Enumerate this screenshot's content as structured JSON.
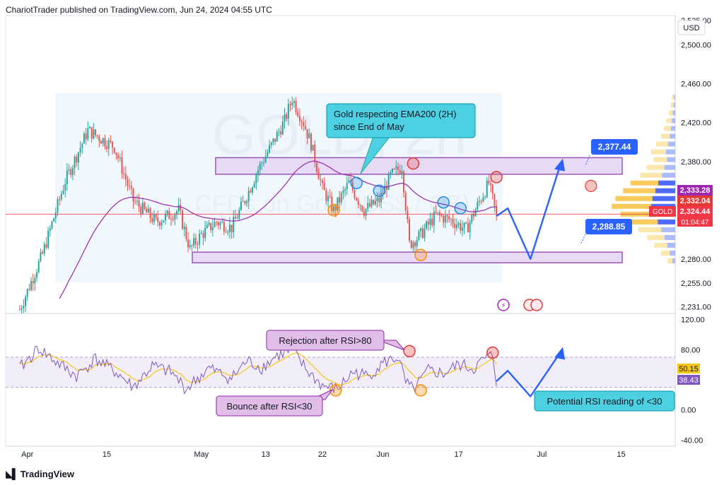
{
  "header": {
    "text": "ChariotTrader published on TradingView.com, Jun 24, 2024 04:55 UTC"
  },
  "footer": {
    "logo_text": "TradingView"
  },
  "currency_button": "USD",
  "watermark": {
    "symbol": "GOLD, 2h",
    "description": "CFDs on Gold (US$ / OZ)"
  },
  "colors": {
    "up": "#26a69a",
    "down": "#ef5350",
    "ema": "#9c27b0",
    "zone_fill": "#e6d7f3",
    "zone_stroke": "#8e44ad",
    "callout_cyan": "#4dd0e1",
    "arrow_blue": "#2962ff",
    "rsi_line": "#7e57c2",
    "rsi_ma": "#f5c518",
    "current_price_line": "#f23645"
  },
  "chart_data": [
    {
      "type": "candlestick",
      "symbol": "GOLD",
      "timeframe": "2h",
      "x_tick_labels": [
        "Apr",
        "15",
        "May",
        "13",
        "22",
        "Jun",
        "17",
        "Jul",
        "15"
      ],
      "y_tick_labels": [
        "2,525.00",
        "2,500.00",
        "2,460.00",
        "2,420.00",
        "2,380.00",
        "2,280.00",
        "2,255.00",
        "2,231.00"
      ],
      "ylim": [
        2224,
        2530
      ],
      "axis_price_labels": [
        {
          "value": "2,333.28",
          "color": "#9c27b0"
        },
        {
          "value": "2,332.04",
          "color": "#e53935"
        },
        {
          "value": "2,324.44",
          "color": "#f23645",
          "symbol": "GOLD",
          "countdown": "01:04:47"
        }
      ],
      "ema200": {
        "name": "EMA200"
      },
      "zones": [
        {
          "label": "resistance",
          "low": 2367,
          "high": 2384
        },
        {
          "label": "support",
          "low": 2276,
          "high": 2287
        }
      ],
      "annotations": [
        {
          "text": "Gold respecting EMA200 (2H) since End of May",
          "kind": "callout"
        },
        {
          "text": "2,377.44",
          "kind": "price-label"
        },
        {
          "text": "2,288.85",
          "kind": "price-label"
        }
      ],
      "price_path_anchors": [
        {
          "t": 0,
          "p": 2228
        },
        {
          "t": 6,
          "p": 2285
        },
        {
          "t": 12,
          "p": 2360
        },
        {
          "t": 18,
          "p": 2412
        },
        {
          "t": 25,
          "p": 2395
        },
        {
          "t": 30,
          "p": 2340
        },
        {
          "t": 36,
          "p": 2318
        },
        {
          "t": 42,
          "p": 2330
        },
        {
          "t": 45,
          "p": 2290
        },
        {
          "t": 48,
          "p": 2305
        },
        {
          "t": 52,
          "p": 2318
        },
        {
          "t": 56,
          "p": 2312
        },
        {
          "t": 60,
          "p": 2345
        },
        {
          "t": 63,
          "p": 2372
        },
        {
          "t": 67,
          "p": 2400
        },
        {
          "t": 70,
          "p": 2422
        },
        {
          "t": 72,
          "p": 2445
        },
        {
          "t": 75,
          "p": 2420
        },
        {
          "t": 77,
          "p": 2398
        },
        {
          "t": 80,
          "p": 2352
        },
        {
          "t": 83,
          "p": 2330
        },
        {
          "t": 87,
          "p": 2358
        },
        {
          "t": 91,
          "p": 2330
        },
        {
          "t": 95,
          "p": 2340
        },
        {
          "t": 98,
          "p": 2365
        },
        {
          "t": 101,
          "p": 2375
        },
        {
          "t": 103,
          "p": 2295
        },
        {
          "t": 106,
          "p": 2305
        },
        {
          "t": 110,
          "p": 2325
        },
        {
          "t": 114,
          "p": 2320
        },
        {
          "t": 118,
          "p": 2310
        },
        {
          "t": 121,
          "p": 2335
        },
        {
          "t": 124,
          "p": 2358
        },
        {
          "t": 126,
          "p": 2324
        }
      ],
      "projection": [
        {
          "t": 126,
          "p": 2324
        },
        {
          "t": 129,
          "p": 2332
        },
        {
          "t": 135,
          "p": 2280
        },
        {
          "t": 143,
          "p": 2378
        }
      ],
      "target_marker": {
        "t": 151,
        "p": 2355
      },
      "volume_profile": [
        {
          "p": 2446,
          "v": 0.05
        },
        {
          "p": 2438,
          "v": 0.07
        },
        {
          "p": 2430,
          "v": 0.1
        },
        {
          "p": 2422,
          "v": 0.14
        },
        {
          "p": 2414,
          "v": 0.18
        },
        {
          "p": 2406,
          "v": 0.22
        },
        {
          "p": 2398,
          "v": 0.3
        },
        {
          "p": 2390,
          "v": 0.38
        },
        {
          "p": 2382,
          "v": 0.34
        },
        {
          "p": 2374,
          "v": 0.45
        },
        {
          "p": 2366,
          "v": 0.55
        },
        {
          "p": 2358,
          "v": 0.7
        },
        {
          "p": 2350,
          "v": 0.82
        },
        {
          "p": 2342,
          "v": 0.94
        },
        {
          "p": 2334,
          "v": 1.0
        },
        {
          "p": 2326,
          "v": 0.86
        },
        {
          "p": 2318,
          "v": 0.72
        },
        {
          "p": 2310,
          "v": 0.58
        },
        {
          "p": 2302,
          "v": 0.44
        },
        {
          "p": 2294,
          "v": 0.33
        },
        {
          "p": 2286,
          "v": 0.22
        },
        {
          "p": 2278,
          "v": 0.12
        }
      ]
    },
    {
      "type": "line",
      "name": "RSI",
      "y_tick_labels": [
        "120.00",
        "80.00",
        "0.00",
        "-40.00"
      ],
      "ylim": [
        -48,
        128
      ],
      "band": [
        30,
        70
      ],
      "value_labels": [
        {
          "value": "50.15",
          "color": "#f5c518"
        },
        {
          "value": "38.43",
          "color": "#7e57c2"
        }
      ],
      "rsi_anchors": [
        {
          "t": 0,
          "v": 55
        },
        {
          "t": 5,
          "v": 82
        },
        {
          "t": 10,
          "v": 62
        },
        {
          "t": 15,
          "v": 45
        },
        {
          "t": 20,
          "v": 68
        },
        {
          "t": 26,
          "v": 48
        },
        {
          "t": 30,
          "v": 30
        },
        {
          "t": 35,
          "v": 58
        },
        {
          "t": 40,
          "v": 50
        },
        {
          "t": 44,
          "v": 28
        },
        {
          "t": 50,
          "v": 55
        },
        {
          "t": 56,
          "v": 42
        },
        {
          "t": 60,
          "v": 65
        },
        {
          "t": 64,
          "v": 56
        },
        {
          "t": 68,
          "v": 72
        },
        {
          "t": 72,
          "v": 78
        },
        {
          "t": 76,
          "v": 52
        },
        {
          "t": 80,
          "v": 32
        },
        {
          "t": 84,
          "v": 27
        },
        {
          "t": 88,
          "v": 50
        },
        {
          "t": 92,
          "v": 45
        },
        {
          "t": 96,
          "v": 62
        },
        {
          "t": 100,
          "v": 70
        },
        {
          "t": 102,
          "v": 36
        },
        {
          "t": 104,
          "v": 26
        },
        {
          "t": 108,
          "v": 52
        },
        {
          "t": 112,
          "v": 48
        },
        {
          "t": 116,
          "v": 60
        },
        {
          "t": 120,
          "v": 55
        },
        {
          "t": 123,
          "v": 68
        },
        {
          "t": 125,
          "v": 72
        },
        {
          "t": 126,
          "v": 38
        }
      ],
      "projection": [
        {
          "t": 126,
          "v": 38
        },
        {
          "t": 129,
          "v": 52
        },
        {
          "t": 135,
          "v": 18
        },
        {
          "t": 143,
          "v": 77
        }
      ],
      "annotations": [
        {
          "text": "Rejection after RSI>80",
          "kind": "callout"
        },
        {
          "text": "Bounce after RSI<30",
          "kind": "callout"
        },
        {
          "text": "Potential RSI reading of <30",
          "kind": "callout"
        }
      ]
    }
  ]
}
